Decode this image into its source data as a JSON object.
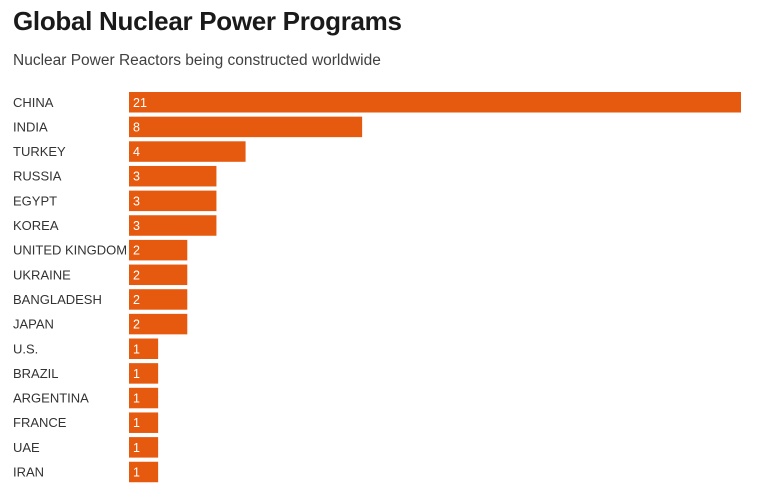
{
  "title": "Global Nuclear Power Programs",
  "subtitle": "Nuclear Power Reactors being constructed worldwide",
  "colors": {
    "bar": "#E55A0F"
  },
  "chart_data": {
    "type": "bar",
    "orientation": "horizontal",
    "categories": [
      "CHINA",
      "INDIA",
      "TURKEY",
      "RUSSIA",
      "EGYPT",
      "KOREA",
      "UNITED KINGDOM",
      "UKRAINE",
      "BANGLADESH",
      "JAPAN",
      "U.S.",
      "BRAZIL",
      "ARGENTINA",
      "FRANCE",
      "UAE",
      "IRAN"
    ],
    "values": [
      21,
      8,
      4,
      3,
      3,
      3,
      2,
      2,
      2,
      2,
      1,
      1,
      1,
      1,
      1,
      1
    ],
    "grid": false,
    "legend": "none"
  }
}
